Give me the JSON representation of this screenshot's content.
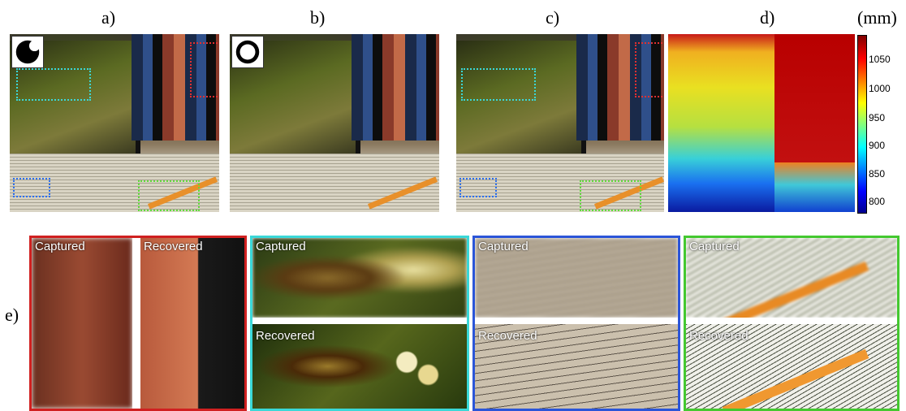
{
  "labels": {
    "a": "a)",
    "b": "b)",
    "c": "c)",
    "d": "d)",
    "e": "e)",
    "unit": "(mm)"
  },
  "colorbar": {
    "ticks": [
      "1050",
      "1000",
      "950",
      "900",
      "850",
      "800"
    ]
  },
  "crops": {
    "red": {
      "captured": "Captured",
      "recovered": "Recovered"
    },
    "cyan": {
      "captured": "Captured",
      "recovered": "Recovered"
    },
    "blue": {
      "captured": "Captured",
      "recovered": "Recovered"
    },
    "green": {
      "captured": "Captured",
      "recovered": "Recovered"
    }
  },
  "colors": {
    "cyan": "#3ad8d8",
    "red": "#e23030",
    "blue": "#2b6ff0",
    "green": "#5fdc3a"
  }
}
